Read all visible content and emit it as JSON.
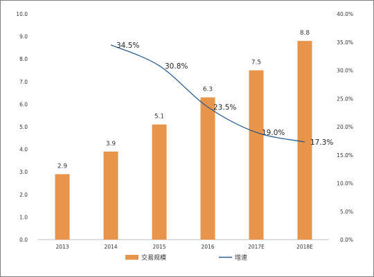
{
  "chart_data": {
    "type": "bar",
    "categories": [
      "2013",
      "2014",
      "2015",
      "2016",
      "2017E",
      "2018E"
    ],
    "series": [
      {
        "name": "交易规模",
        "type": "bar",
        "axis": "left",
        "color": "#E8944A",
        "values": [
          2.9,
          3.9,
          5.1,
          6.3,
          7.5,
          8.8
        ],
        "labels": [
          "2.9",
          "3.9",
          "5.1",
          "6.3",
          "7.5",
          "8.8"
        ]
      },
      {
        "name": "增速",
        "type": "line",
        "axis": "right",
        "color": "#2E5B8C",
        "values": [
          null,
          34.5,
          30.8,
          23.5,
          19.0,
          17.3
        ],
        "labels": [
          null,
          "34.5%",
          "30.8%",
          "23.5%",
          "19.0%",
          "17.3%"
        ]
      }
    ],
    "ylim": [
      0,
      10
    ],
    "yticks": [
      "0.0",
      "1.0",
      "2.0",
      "3.0",
      "4.0",
      "5.0",
      "6.0",
      "7.0",
      "8.0",
      "9.0",
      "10.0"
    ],
    "y2lim": [
      0,
      40
    ],
    "y2ticks": [
      "0.0%",
      "5.0%",
      "10.0%",
      "15.0%",
      "20.0%",
      "25.0%",
      "30.0%",
      "35.0%",
      "40.0%"
    ],
    "grid": false,
    "legend": "bottom-center"
  }
}
